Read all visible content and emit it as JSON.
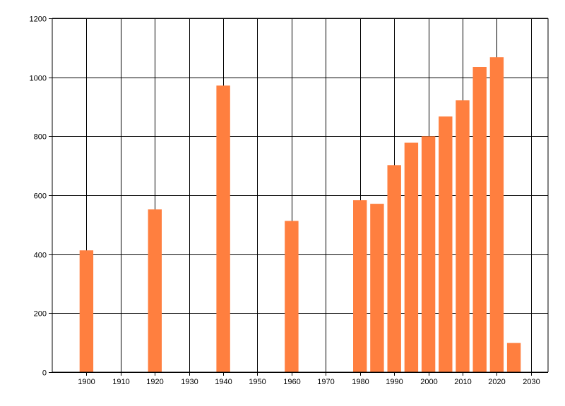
{
  "chart_data": {
    "type": "bar",
    "title": "",
    "xlabel": "",
    "ylabel": "",
    "xlim": [
      1890,
      2035
    ],
    "ylim": [
      0,
      1200
    ],
    "x_ticks": [
      1900,
      1910,
      1920,
      1930,
      1940,
      1950,
      1960,
      1970,
      1980,
      1990,
      2000,
      2010,
      2020,
      2030
    ],
    "y_ticks": [
      0,
      200,
      400,
      600,
      800,
      1000,
      1200
    ],
    "grid": true,
    "bar_width_years": 4,
    "bar_color": "#ff7f3f",
    "x": [
      1900,
      1920,
      1940,
      1960,
      1980,
      1985,
      1990,
      1995,
      2000,
      2005,
      2010,
      2015,
      2020,
      2025
    ],
    "values": [
      413,
      552,
      972,
      513,
      583,
      571,
      702,
      778,
      800,
      867,
      922,
      1035,
      1068,
      99
    ]
  }
}
